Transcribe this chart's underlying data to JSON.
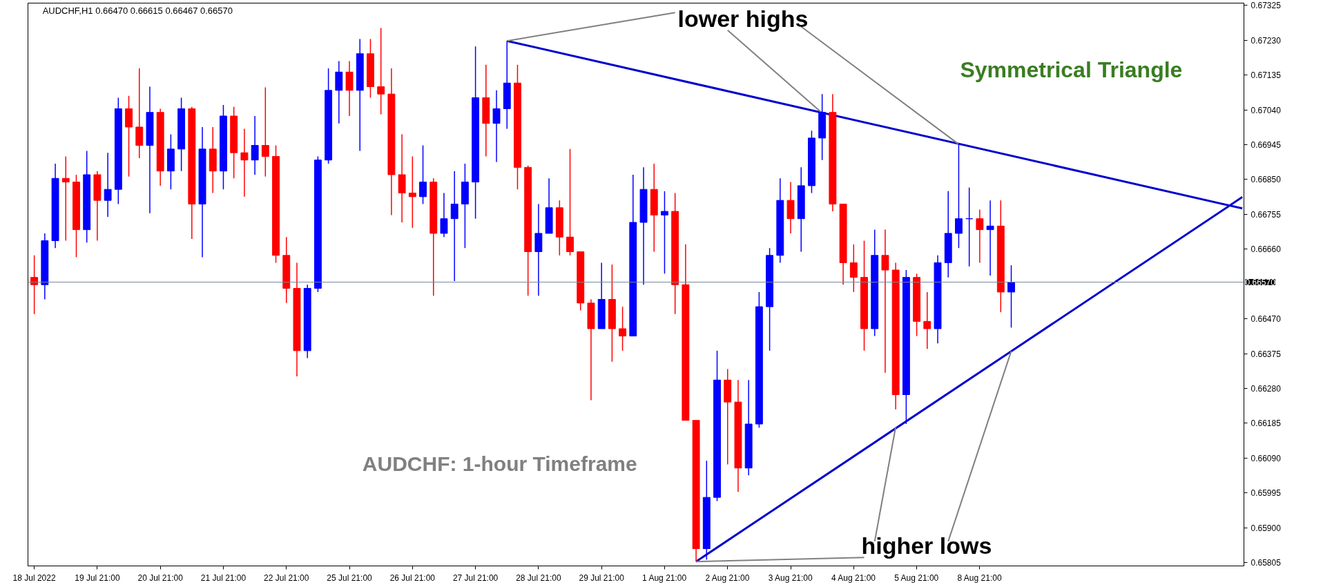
{
  "chart_data": {
    "type": "candlestick",
    "title": "AUDCHF,H1  0.66470 0.66615 0.66467 0.66570",
    "categories": [
      "18 Jul 2022",
      null,
      null,
      null,
      null,
      null,
      "19 Jul 21:00",
      null,
      null,
      null,
      null,
      null,
      "20 Jul 21:00",
      null,
      null,
      null,
      null,
      null,
      "21 Jul 21:00",
      null,
      null,
      null,
      null,
      null,
      "22 Jul 21:00",
      null,
      null,
      null,
      null,
      null,
      "25 Jul 21:00",
      null,
      null,
      null,
      null,
      null,
      "26 Jul 21:00",
      null,
      null,
      null,
      null,
      null,
      "27 Jul 21:00",
      null,
      null,
      null,
      null,
      null,
      "28 Jul 21:00",
      null,
      null,
      null,
      null,
      null,
      "29 Jul 21:00",
      null,
      null,
      null,
      null,
      null,
      "1 Aug 21:00",
      null,
      null,
      null,
      null,
      null,
      "2 Aug 21:00",
      null,
      null,
      null,
      null,
      null,
      "3 Aug 21:00",
      null,
      null,
      null,
      null,
      null,
      "4 Aug 21:00",
      null,
      null,
      null,
      null,
      null,
      "5 Aug 21:00",
      null,
      null,
      null,
      null,
      null,
      "8 Aug 21:00",
      null,
      null,
      null,
      null,
      null,
      null,
      null,
      null,
      null,
      null,
      null,
      null,
      null,
      null,
      null,
      null,
      null,
      null,
      null,
      null,
      null,
      null,
      null,
      null,
      null
    ],
    "ohlc": [
      [
        0.66583,
        0.66643,
        0.66483,
        0.66563
      ],
      [
        0.66563,
        0.66703,
        0.66523,
        0.66683
      ],
      [
        0.66683,
        0.66893,
        0.66663,
        0.66853
      ],
      [
        0.66853,
        0.66913,
        0.66683,
        0.66843
      ],
      [
        0.66843,
        0.66863,
        0.66638,
        0.66713
      ],
      [
        0.66713,
        0.66928,
        0.66678,
        0.66863
      ],
      [
        0.66863,
        0.66873,
        0.66683,
        0.66793
      ],
      [
        0.66793,
        0.66923,
        0.66748,
        0.66823
      ],
      [
        0.66823,
        0.67073,
        0.66783,
        0.67043
      ],
      [
        0.67043,
        0.67078,
        0.66858,
        0.66993
      ],
      [
        0.66993,
        0.67153,
        0.66908,
        0.66943
      ],
      [
        0.66943,
        0.67103,
        0.66758,
        0.67033
      ],
      [
        0.67033,
        0.67043,
        0.66833,
        0.66873
      ],
      [
        0.66873,
        0.66973,
        0.66823,
        0.66933
      ],
      [
        0.66933,
        0.67073,
        0.66873,
        0.67043
      ],
      [
        0.67043,
        0.67048,
        0.66688,
        0.66783
      ],
      [
        0.66783,
        0.66993,
        0.66638,
        0.66933
      ],
      [
        0.66933,
        0.66993,
        0.66813,
        0.66873
      ],
      [
        0.66873,
        0.67053,
        0.66823,
        0.67023
      ],
      [
        0.67023,
        0.67048,
        0.66853,
        0.66923
      ],
      [
        0.66923,
        0.66988,
        0.66803,
        0.66903
      ],
      [
        0.66903,
        0.67023,
        0.66863,
        0.66943
      ],
      [
        0.66943,
        0.67101,
        0.66858,
        0.66913
      ],
      [
        0.66913,
        0.66943,
        0.66623,
        0.66643
      ],
      [
        0.66643,
        0.66693,
        0.66513,
        0.66553
      ],
      [
        0.66553,
        0.66623,
        0.66313,
        0.66383
      ],
      [
        0.66383,
        0.66563,
        0.66363,
        0.66553
      ],
      [
        0.66553,
        0.66913,
        0.66543,
        0.66903
      ],
      [
        0.66903,
        0.67153,
        0.66893,
        0.67093
      ],
      [
        0.67093,
        0.67173,
        0.67003,
        0.67143
      ],
      [
        0.67143,
        0.67173,
        0.67023,
        0.67093
      ],
      [
        0.67093,
        0.67233,
        0.66928,
        0.67193
      ],
      [
        0.67193,
        0.67233,
        0.67073,
        0.67103
      ],
      [
        0.67103,
        0.67263,
        0.67028,
        0.67083
      ],
      [
        0.67083,
        0.67153,
        0.66753,
        0.66863
      ],
      [
        0.66863,
        0.66973,
        0.66733,
        0.66813
      ],
      [
        0.66813,
        0.66913,
        0.66718,
        0.66803
      ],
      [
        0.66803,
        0.66943,
        0.66783,
        0.66843
      ],
      [
        0.66843,
        0.66853,
        0.66533,
        0.66703
      ],
      [
        0.66703,
        0.66813,
        0.66693,
        0.66743
      ],
      [
        0.66743,
        0.66873,
        0.66573,
        0.66783
      ],
      [
        0.66783,
        0.66893,
        0.66663,
        0.66843
      ],
      [
        0.66843,
        0.67213,
        0.66743,
        0.67073
      ],
      [
        0.67073,
        0.67163,
        0.66913,
        0.67003
      ],
      [
        0.67003,
        0.67093,
        0.66898,
        0.67043
      ],
      [
        0.67043,
        0.67228,
        0.66988,
        0.67113
      ],
      [
        0.67113,
        0.67163,
        0.66823,
        0.66883
      ],
      [
        0.66883,
        0.66888,
        0.66533,
        0.66653
      ],
      [
        0.66653,
        0.66783,
        0.66533,
        0.66703
      ],
      [
        0.66703,
        0.66853,
        0.66703,
        0.66773
      ],
      [
        0.66773,
        0.66793,
        0.66643,
        0.66693
      ],
      [
        0.66693,
        0.66933,
        0.66643,
        0.66653
      ],
      [
        0.66653,
        0.66653,
        0.66493,
        0.66513
      ],
      [
        0.66513,
        0.66523,
        0.66248,
        0.66443
      ],
      [
        0.66443,
        0.66623,
        0.66443,
        0.66523
      ],
      [
        0.66523,
        0.66618,
        0.66353,
        0.66443
      ],
      [
        0.66443,
        0.66503,
        0.66383,
        0.66423
      ],
      [
        0.66423,
        0.66863,
        0.66423,
        0.66733
      ],
      [
        0.66733,
        0.66883,
        0.66563,
        0.66823
      ],
      [
        0.66823,
        0.66893,
        0.66653,
        0.66753
      ],
      [
        0.66753,
        0.66818,
        0.66593,
        0.66763
      ],
      [
        0.66763,
        0.66813,
        0.66483,
        0.66563
      ],
      [
        0.66563,
        0.66673,
        0.66193,
        0.66193
      ],
      [
        0.66193,
        0.66193,
        0.65808,
        0.65843
      ],
      [
        0.65843,
        0.66083,
        0.65813,
        0.65983
      ],
      [
        0.65983,
        0.66383,
        0.65973,
        0.66303
      ],
      [
        0.66303,
        0.66333,
        0.66073,
        0.66243
      ],
      [
        0.66243,
        0.66303,
        0.65998,
        0.66063
      ],
      [
        0.66063,
        0.66303,
        0.66043,
        0.66183
      ],
      [
        0.66183,
        0.66543,
        0.66173,
        0.66503
      ],
      [
        0.66503,
        0.66663,
        0.66383,
        0.66643
      ],
      [
        0.66643,
        0.66853,
        0.66623,
        0.66793
      ],
      [
        0.66793,
        0.66843,
        0.66703,
        0.66743
      ],
      [
        0.66743,
        0.66883,
        0.66653,
        0.66833
      ],
      [
        0.66833,
        0.66983,
        0.66813,
        0.66963
      ],
      [
        0.66963,
        0.67083,
        0.66903,
        0.67033
      ],
      [
        0.67033,
        0.67083,
        0.66763,
        0.66783
      ],
      [
        0.66783,
        0.66783,
        0.66563,
        0.66623
      ],
      [
        0.66623,
        0.66673,
        0.66543,
        0.66583
      ],
      [
        0.66583,
        0.66683,
        0.66383,
        0.66443
      ],
      [
        0.66443,
        0.66713,
        0.66423,
        0.66643
      ],
      [
        0.66643,
        0.66713,
        0.66323,
        0.66603
      ],
      [
        0.66603,
        0.66623,
        0.66223,
        0.66263
      ],
      [
        0.66263,
        0.66603,
        0.66183,
        0.66583
      ],
      [
        0.66583,
        0.66593,
        0.66423,
        0.66463
      ],
      [
        0.66463,
        0.66543,
        0.66388,
        0.66443
      ],
      [
        0.66443,
        0.66643,
        0.66403,
        0.66623
      ],
      [
        0.66623,
        0.66818,
        0.66583,
        0.66703
      ],
      [
        0.66703,
        0.66948,
        0.66663,
        0.66743
      ],
      [
        0.66743,
        0.66828,
        0.66613,
        0.66743
      ],
      [
        0.66743,
        0.66768,
        0.66623,
        0.66713
      ],
      [
        0.66713,
        0.66793,
        0.66588,
        0.66723
      ],
      [
        0.66723,
        0.66793,
        0.66488,
        0.66543
      ],
      [
        0.66543,
        0.66616,
        0.66446,
        0.6657
      ],
      null,
      null,
      null,
      null,
      null,
      null,
      null,
      null,
      null,
      null,
      null,
      null,
      null,
      null,
      null,
      null,
      null,
      null,
      null,
      null,
      null,
      null
    ],
    "colors": [
      "#ff0000",
      "#0000ff",
      "#0000ff",
      "#ff0000",
      "#ff0000",
      "#0000ff",
      "#ff0000",
      "#0000ff",
      "#0000ff",
      "#ff0000",
      "#ff0000",
      "#0000ff",
      "#ff0000",
      "#0000ff",
      "#0000ff",
      "#ff0000",
      "#0000ff",
      "#ff0000",
      "#0000ff",
      "#ff0000",
      "#ff0000",
      "#0000ff",
      "#ff0000",
      "#ff0000",
      "#ff0000",
      "#ff0000",
      "#0000ff",
      "#0000ff",
      "#0000ff",
      "#0000ff",
      "#ff0000",
      "#0000ff",
      "#ff0000",
      "#ff0000",
      "#ff0000",
      "#ff0000",
      "#ff0000",
      "#0000ff",
      "#ff0000",
      "#0000ff",
      "#0000ff",
      "#0000ff",
      "#0000ff",
      "#ff0000",
      "#0000ff",
      "#0000ff",
      "#ff0000",
      "#ff0000",
      "#0000ff",
      "#0000ff",
      "#ff0000",
      "#ff0000",
      "#ff0000",
      "#ff0000",
      "#0000ff",
      "#ff0000",
      "#ff0000",
      "#0000ff",
      "#0000ff",
      "#ff0000",
      "#0000ff",
      "#ff0000",
      "#ff0000",
      "#ff0000",
      "#0000ff",
      "#0000ff",
      "#ff0000",
      "#ff0000",
      "#0000ff",
      "#0000ff",
      "#0000ff",
      "#0000ff",
      "#ff0000",
      "#0000ff",
      "#0000ff",
      "#0000ff",
      "#ff0000",
      "#ff0000",
      "#ff0000",
      "#ff0000",
      "#0000ff",
      "#ff0000",
      "#ff0000",
      "#0000ff",
      "#ff0000",
      "#ff0000",
      "#0000ff",
      "#0000ff",
      "#0000ff",
      "#0000ff",
      "#ff0000",
      "#0000ff",
      "#ff0000",
      "#0000ff",
      null,
      null,
      null,
      null,
      null,
      null,
      null,
      null,
      null,
      null,
      null,
      null,
      null,
      null,
      null,
      null,
      null,
      null,
      null,
      null,
      null,
      null
    ],
    "series": [
      {
        "type": "line",
        "color": "#0000cd",
        "values": [
          null,
          null,
          null,
          null,
          null,
          null,
          null,
          null,
          null,
          null,
          null,
          null,
          null,
          null,
          null,
          null,
          null,
          null,
          null,
          null,
          null,
          null,
          null,
          null,
          null,
          null,
          null,
          null,
          null,
          null,
          null,
          null,
          null,
          null,
          null,
          null,
          null,
          null,
          null,
          null,
          null,
          null,
          null,
          null,
          null,
          0.67228,
          null,
          null,
          null,
          null,
          null,
          null,
          null,
          null,
          null,
          null,
          null,
          null,
          null,
          null,
          null,
          null,
          null,
          null,
          null,
          null,
          null,
          null,
          null,
          null,
          null,
          null,
          null,
          null,
          null,
          null,
          null,
          null,
          null,
          null,
          null,
          null,
          null,
          null,
          null,
          null,
          null,
          null,
          null,
          null,
          null,
          null,
          null,
          null,
          null,
          null,
          null,
          null,
          null,
          null,
          null,
          null,
          null,
          null,
          null,
          null,
          null,
          null,
          null,
          null,
          null,
          null,
          null,
          null,
          null,
          0.66771
        ]
      },
      {
        "type": "line",
        "color": "#0000cd",
        "values": [
          null,
          null,
          null,
          null,
          null,
          null,
          null,
          null,
          null,
          null,
          null,
          null,
          null,
          null,
          null,
          null,
          null,
          null,
          null,
          null,
          null,
          null,
          null,
          null,
          null,
          null,
          null,
          null,
          null,
          null,
          null,
          null,
          null,
          null,
          null,
          null,
          null,
          null,
          null,
          null,
          null,
          null,
          null,
          null,
          null,
          null,
          null,
          null,
          null,
          null,
          null,
          null,
          null,
          null,
          null,
          null,
          null,
          null,
          null,
          null,
          null,
          null,
          null,
          0.65808,
          null,
          null,
          null,
          null,
          null,
          null,
          null,
          null,
          null,
          null,
          null,
          null,
          null,
          null,
          null,
          null,
          null,
          null,
          null,
          null,
          null,
          null,
          null,
          null,
          null,
          null,
          null,
          null,
          null,
          null,
          null,
          null,
          null,
          null,
          null,
          null,
          null,
          null,
          null,
          null,
          null,
          null,
          null,
          null,
          null,
          null,
          null,
          null,
          null,
          null,
          null,
          0.66802
        ]
      },
      {
        "type": "line",
        "color": "#808080",
        "values": [
          null,
          null,
          null,
          null,
          null,
          null,
          null,
          null,
          null,
          null,
          null,
          null,
          null,
          null,
          null,
          null,
          null,
          null,
          null,
          null,
          null,
          null,
          null,
          null,
          null,
          null,
          null,
          null,
          null,
          null,
          null,
          null,
          null,
          null,
          null,
          null,
          null,
          null,
          null,
          null,
          null,
          null,
          null,
          null,
          null,
          0.67228,
          null,
          null,
          null,
          null,
          null,
          null,
          null,
          null,
          null,
          null,
          null,
          null,
          null,
          null,
          null,
          0.67305,
          null,
          null,
          null,
          null,
          null,
          null,
          null,
          null,
          null,
          null,
          null,
          null,
          null,
          null,
          null,
          null,
          null,
          null,
          null,
          null,
          null,
          null,
          null,
          null,
          null,
          null,
          null,
          null,
          null,
          null,
          null,
          null,
          null,
          null,
          null,
          null,
          null,
          null,
          null,
          null,
          null,
          null,
          null,
          null,
          null,
          null,
          null,
          null,
          null,
          null,
          null,
          null,
          null,
          null
        ]
      },
      {
        "type": "line",
        "color": "#808080",
        "values": [
          null,
          null,
          null,
          null,
          null,
          null,
          null,
          null,
          null,
          null,
          null,
          null,
          null,
          null,
          null,
          null,
          null,
          null,
          null,
          null,
          null,
          null,
          null,
          null,
          null,
          null,
          null,
          null,
          null,
          null,
          null,
          null,
          null,
          null,
          null,
          null,
          null,
          null,
          null,
          null,
          null,
          null,
          null,
          null,
          null,
          null,
          null,
          null,
          null,
          null,
          null,
          null,
          null,
          null,
          null,
          null,
          null,
          null,
          null,
          null,
          null,
          null,
          null,
          null,
          null,
          null,
          0.67257,
          null,
          null,
          null,
          null,
          null,
          null,
          null,
          null,
          0.67031,
          null,
          null,
          null,
          null,
          null,
          null,
          null,
          null,
          null,
          null,
          null,
          null,
          null,
          null,
          null,
          null,
          null,
          null,
          null,
          null,
          null,
          null,
          null,
          null,
          null,
          null,
          null,
          null,
          null,
          null,
          null,
          null,
          null,
          null,
          null,
          null,
          null,
          null,
          null,
          null
        ]
      },
      {
        "type": "line",
        "color": "#808080",
        "values": [
          null,
          null,
          null,
          null,
          null,
          null,
          null,
          null,
          null,
          null,
          null,
          null,
          null,
          null,
          null,
          null,
          null,
          null,
          null,
          null,
          null,
          null,
          null,
          null,
          null,
          null,
          null,
          null,
          null,
          null,
          null,
          null,
          null,
          null,
          null,
          null,
          null,
          null,
          null,
          null,
          null,
          null,
          null,
          null,
          null,
          null,
          null,
          null,
          null,
          null,
          null,
          null,
          null,
          null,
          null,
          null,
          null,
          null,
          null,
          null,
          null,
          null,
          null,
          null,
          null,
          null,
          null,
          null,
          null,
          null,
          null,
          null,
          null,
          0.67267,
          null,
          null,
          null,
          null,
          null,
          null,
          null,
          null,
          null,
          null,
          null,
          null,
          null,
          null,
          0.66946,
          null,
          null,
          null,
          null,
          null,
          null,
          null,
          null,
          null,
          null,
          null,
          null,
          null,
          null,
          null,
          null,
          null,
          null,
          null,
          null,
          null,
          null,
          null,
          null,
          null,
          null,
          null
        ]
      },
      {
        "type": "line",
        "color": "#808080",
        "values": [
          null,
          null,
          null,
          null,
          null,
          null,
          null,
          null,
          null,
          null,
          null,
          null,
          null,
          null,
          null,
          null,
          null,
          null,
          null,
          null,
          null,
          null,
          null,
          null,
          null,
          null,
          null,
          null,
          null,
          null,
          null,
          null,
          null,
          null,
          null,
          null,
          null,
          null,
          null,
          null,
          null,
          null,
          null,
          null,
          null,
          null,
          null,
          null,
          null,
          null,
          null,
          null,
          null,
          null,
          null,
          null,
          null,
          null,
          null,
          null,
          null,
          null,
          null,
          0.65808,
          null,
          null,
          null,
          null,
          null,
          null,
          null,
          null,
          null,
          null,
          null,
          null,
          null,
          null,
          null,
          0.65819,
          null,
          null,
          null,
          null,
          null,
          null,
          null,
          null,
          null,
          null,
          null,
          null,
          null,
          null,
          null,
          null,
          null,
          null,
          null,
          null,
          null,
          null,
          null,
          null,
          null,
          null,
          null,
          null,
          null,
          null,
          null,
          null,
          null,
          null,
          null,
          null
        ]
      },
      {
        "type": "line",
        "color": "#808080",
        "values": [
          null,
          null,
          null,
          null,
          null,
          null,
          null,
          null,
          null,
          null,
          null,
          null,
          null,
          null,
          null,
          null,
          null,
          null,
          null,
          null,
          null,
          null,
          null,
          null,
          null,
          null,
          null,
          null,
          null,
          null,
          null,
          null,
          null,
          null,
          null,
          null,
          null,
          null,
          null,
          null,
          null,
          null,
          null,
          null,
          null,
          null,
          null,
          null,
          null,
          null,
          null,
          null,
          null,
          null,
          null,
          null,
          null,
          null,
          null,
          null,
          null,
          null,
          null,
          null,
          null,
          null,
          null,
          null,
          null,
          null,
          null,
          null,
          null,
          null,
          null,
          null,
          null,
          null,
          null,
          null,
          0.65863,
          null,
          0.66175,
          null,
          null,
          null,
          null,
          null,
          null,
          null,
          null,
          null,
          null,
          null,
          null,
          null,
          null,
          null,
          null,
          null,
          null,
          null,
          null,
          null,
          null,
          null,
          null,
          null,
          null,
          null,
          null,
          null,
          null,
          null,
          null,
          null
        ]
      },
      {
        "type": "line",
        "color": "#808080",
        "values": [
          null,
          null,
          null,
          null,
          null,
          null,
          null,
          null,
          null,
          null,
          null,
          null,
          null,
          null,
          null,
          null,
          null,
          null,
          null,
          null,
          null,
          null,
          null,
          null,
          null,
          null,
          null,
          null,
          null,
          null,
          null,
          null,
          null,
          null,
          null,
          null,
          null,
          null,
          null,
          null,
          null,
          null,
          null,
          null,
          null,
          null,
          null,
          null,
          null,
          null,
          null,
          null,
          null,
          null,
          null,
          null,
          null,
          null,
          null,
          null,
          null,
          null,
          null,
          null,
          null,
          null,
          null,
          null,
          null,
          null,
          null,
          null,
          null,
          null,
          null,
          null,
          null,
          null,
          null,
          null,
          null,
          null,
          null,
          null,
          null,
          null,
          null,
          0.65863,
          null,
          null,
          null,
          null,
          null,
          0.66382,
          null,
          null,
          null,
          null,
          null,
          null,
          null,
          null,
          null,
          null,
          null,
          null,
          null,
          null,
          null,
          null,
          null,
          null,
          null,
          null,
          null,
          null
        ]
      }
    ],
    "annotations": [
      "Symmetrical Triangle",
      "AUDCHF: 1-hour Timeframe",
      "lower highs",
      "higher lows"
    ],
    "ref_lines": [
      {
        "axis": "y",
        "value": 0.6657,
        "label": "0.66570",
        "color": "#778899"
      }
    ],
    "ylim": [
      0.65796,
      0.67331
    ],
    "yticks": [
      {
        "value": 0.67325,
        "label": "0.67325"
      },
      {
        "value": 0.6723,
        "label": "0.67230"
      },
      {
        "value": 0.67135,
        "label": "0.67135"
      },
      {
        "value": 0.6704,
        "label": "0.67040"
      },
      {
        "value": 0.66945,
        "label": "0.66945"
      },
      {
        "value": 0.6685,
        "label": "0.66850"
      },
      {
        "value": 0.66755,
        "label": "0.66755"
      },
      {
        "value": 0.6666,
        "label": "0.66660"
      },
      {
        "value": 0.6647,
        "label": "0.66470"
      },
      {
        "value": 0.66375,
        "label": "0.66375"
      },
      {
        "value": 0.6628,
        "label": "0.66280"
      },
      {
        "value": 0.66185,
        "label": "0.66185"
      },
      {
        "value": 0.6609,
        "label": "0.66090"
      },
      {
        "value": 0.65995,
        "label": "0.65995"
      },
      {
        "value": 0.659,
        "label": "0.65900"
      },
      {
        "value": 0.65805,
        "label": "0.65805"
      }
    ]
  }
}
